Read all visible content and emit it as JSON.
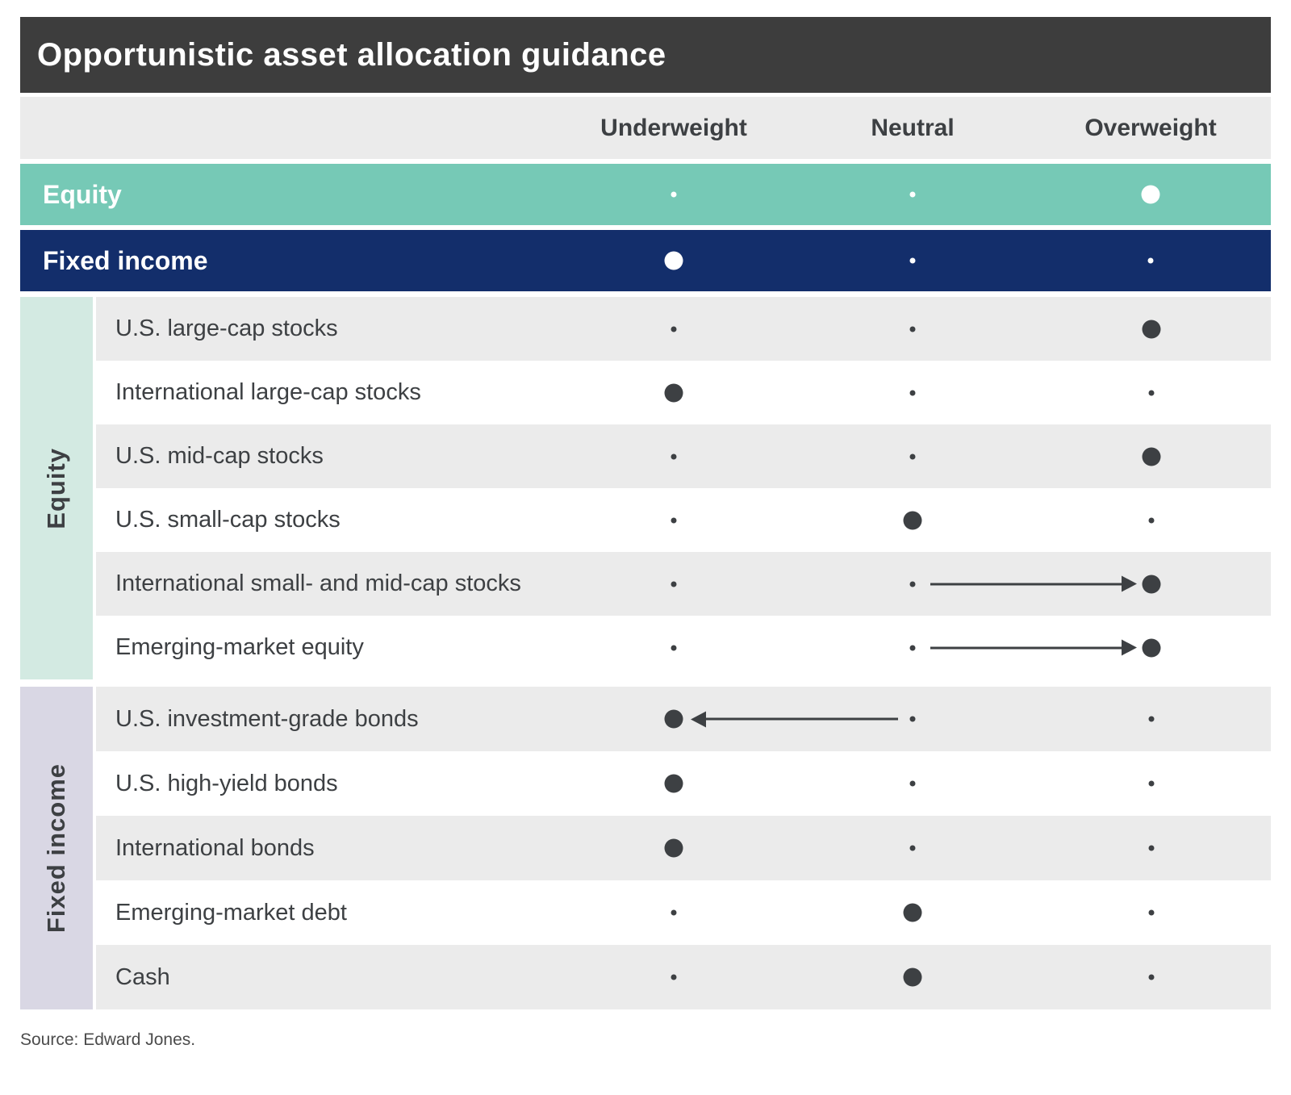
{
  "title": "Opportunistic asset allocation guidance",
  "columns": [
    "Underweight",
    "Neutral",
    "Overweight"
  ],
  "summary_rows": [
    {
      "label": "Equity",
      "dots": {
        "underweight": "small",
        "neutral": "small",
        "overweight": "large"
      },
      "arrow": null
    },
    {
      "label": "Fixed income",
      "dots": {
        "underweight": "large",
        "neutral": "small",
        "overweight": "small"
      },
      "arrow": null
    }
  ],
  "sections": [
    {
      "label": "Equity",
      "rows": [
        {
          "label": "U.S. large-cap stocks",
          "dots": {
            "underweight": "small",
            "neutral": "small",
            "overweight": "large"
          },
          "arrow": null
        },
        {
          "label": "International large-cap stocks",
          "dots": {
            "underweight": "large",
            "neutral": "small",
            "overweight": "small"
          },
          "arrow": null
        },
        {
          "label": "U.S. mid-cap stocks",
          "dots": {
            "underweight": "small",
            "neutral": "small",
            "overweight": "large"
          },
          "arrow": null
        },
        {
          "label": "U.S. small-cap stocks",
          "dots": {
            "underweight": "small",
            "neutral": "large",
            "overweight": "small"
          },
          "arrow": null
        },
        {
          "label": "International small- and mid-cap stocks",
          "dots": {
            "underweight": "small",
            "neutral": "small",
            "overweight": "large"
          },
          "arrow": "neutral-to-overweight"
        },
        {
          "label": "Emerging-market equity",
          "dots": {
            "underweight": "small",
            "neutral": "small",
            "overweight": "large"
          },
          "arrow": "neutral-to-overweight"
        }
      ]
    },
    {
      "label": "Fixed income",
      "rows": [
        {
          "label": "U.S. investment-grade bonds",
          "dots": {
            "underweight": "large",
            "neutral": "small",
            "overweight": "small"
          },
          "arrow": "neutral-to-underweight"
        },
        {
          "label": "U.S. high-yield bonds",
          "dots": {
            "underweight": "large",
            "neutral": "small",
            "overweight": "small"
          },
          "arrow": null
        },
        {
          "label": "International bonds",
          "dots": {
            "underweight": "large",
            "neutral": "small",
            "overweight": "small"
          },
          "arrow": null
        },
        {
          "label": "Emerging-market debt",
          "dots": {
            "underweight": "small",
            "neutral": "large",
            "overweight": "small"
          },
          "arrow": null
        },
        {
          "label": "Cash",
          "dots": {
            "underweight": "small",
            "neutral": "large",
            "overweight": "small"
          },
          "arrow": null
        }
      ]
    }
  ],
  "source": "Source: Edward Jones.",
  "colors": {
    "dark_bar": "#3d3d3d",
    "row_gray": "#ebebeb",
    "equity_band": "#76c9b6",
    "fixed_band": "#132e6b",
    "equity_sidebar": "#d3eae2",
    "fixed_sidebar": "#d9d7e4",
    "ink": "#3d4043"
  },
  "chart_data": {
    "type": "table",
    "title": "Opportunistic asset allocation guidance",
    "columns": [
      "Underweight",
      "Neutral",
      "Overweight"
    ],
    "rows": [
      {
        "category": "Summary",
        "asset": "Equity",
        "stance": "overweight",
        "previous_stance": null
      },
      {
        "category": "Summary",
        "asset": "Fixed income",
        "stance": "underweight",
        "previous_stance": null
      },
      {
        "category": "Equity",
        "asset": "U.S. large-cap stocks",
        "stance": "overweight",
        "previous_stance": null
      },
      {
        "category": "Equity",
        "asset": "International large-cap stocks",
        "stance": "underweight",
        "previous_stance": null
      },
      {
        "category": "Equity",
        "asset": "U.S. mid-cap stocks",
        "stance": "overweight",
        "previous_stance": null
      },
      {
        "category": "Equity",
        "asset": "U.S. small-cap stocks",
        "stance": "neutral",
        "previous_stance": null
      },
      {
        "category": "Equity",
        "asset": "International small- and mid-cap stocks",
        "stance": "overweight",
        "previous_stance": "neutral"
      },
      {
        "category": "Equity",
        "asset": "Emerging-market equity",
        "stance": "overweight",
        "previous_stance": "neutral"
      },
      {
        "category": "Fixed income",
        "asset": "U.S. investment-grade bonds",
        "stance": "underweight",
        "previous_stance": "neutral"
      },
      {
        "category": "Fixed income",
        "asset": "U.S. high-yield bonds",
        "stance": "underweight",
        "previous_stance": null
      },
      {
        "category": "Fixed income",
        "asset": "International bonds",
        "stance": "underweight",
        "previous_stance": null
      },
      {
        "category": "Fixed income",
        "asset": "Emerging-market debt",
        "stance": "neutral",
        "previous_stance": null
      },
      {
        "category": "Fixed income",
        "asset": "Cash",
        "stance": "neutral",
        "previous_stance": null
      }
    ],
    "source": "Source: Edward Jones.",
    "legend_position": "none",
    "grid": false
  }
}
